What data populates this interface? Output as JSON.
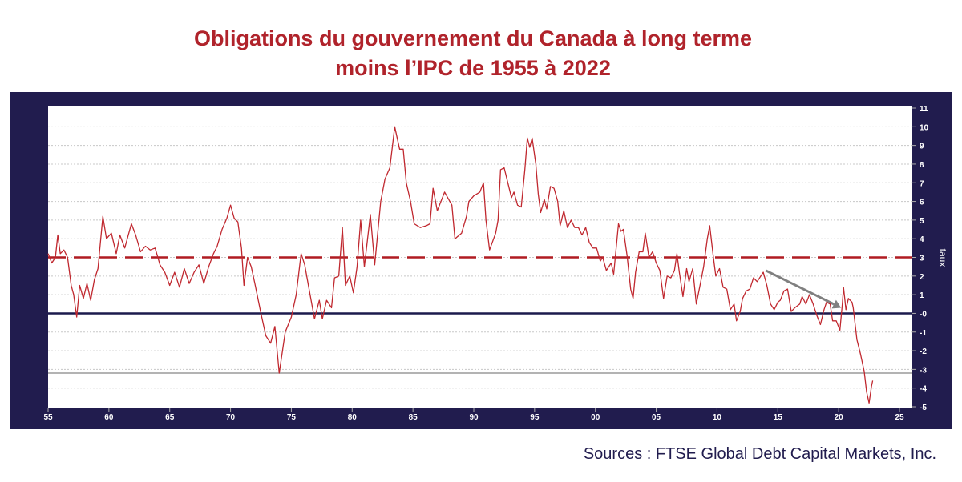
{
  "chart_data": {
    "type": "line",
    "title_line1": "Obligations du gouvernement du Canada à long terme",
    "title_line2": "moins l’IPC de 1955 à 2022",
    "ylabel": "taux",
    "xlabel": "",
    "xlim": [
      1955,
      2025
    ],
    "ylim": [
      -5,
      11
    ],
    "grid": true,
    "x_ticks": [
      {
        "value": 1955,
        "label": "55"
      },
      {
        "value": 1960,
        "label": "60"
      },
      {
        "value": 1965,
        "label": "65"
      },
      {
        "value": 1970,
        "label": "70"
      },
      {
        "value": 1975,
        "label": "75"
      },
      {
        "value": 1980,
        "label": "80"
      },
      {
        "value": 1985,
        "label": "85"
      },
      {
        "value": 1990,
        "label": "90"
      },
      {
        "value": 1995,
        "label": "95"
      },
      {
        "value": 2000,
        "label": "00"
      },
      {
        "value": 2005,
        "label": "05"
      },
      {
        "value": 2010,
        "label": "10"
      },
      {
        "value": 2015,
        "label": "15"
      },
      {
        "value": 2020,
        "label": "20"
      },
      {
        "value": 2025,
        "label": "25"
      }
    ],
    "y_ticks": [
      {
        "value": 11,
        "label": "11"
      },
      {
        "value": 10,
        "label": "10"
      },
      {
        "value": 9,
        "label": "9"
      },
      {
        "value": 8,
        "label": "8"
      },
      {
        "value": 7,
        "label": "7"
      },
      {
        "value": 6,
        "label": "6"
      },
      {
        "value": 5,
        "label": "5"
      },
      {
        "value": 4,
        "label": "4"
      },
      {
        "value": 3,
        "label": "3"
      },
      {
        "value": 2,
        "label": "2"
      },
      {
        "value": 1,
        "label": "1"
      },
      {
        "value": 0,
        "label": "-0"
      },
      {
        "value": -1,
        "label": "-1"
      },
      {
        "value": -2,
        "label": "-2"
      },
      {
        "value": -3,
        "label": "-3"
      },
      {
        "value": -4,
        "label": "-4"
      },
      {
        "value": -5,
        "label": "-5"
      }
    ],
    "reference_lines": [
      {
        "name": "average",
        "value": 3.0,
        "style": "dashed",
        "color": "#b01c22"
      },
      {
        "name": "zero",
        "value": 0,
        "style": "solid",
        "color": "#1c1a4d"
      },
      {
        "name": "previous-low",
        "value": -3.2,
        "style": "solid",
        "color": "#9a9a9a"
      }
    ],
    "arrow": {
      "from": [
        2014.0,
        2.3
      ],
      "to": [
        2020.2,
        0.3
      ],
      "color": "#808080"
    },
    "series": [
      {
        "name": "Obligations LT moins IPC",
        "color": "#c0282f",
        "points": [
          [
            1955.0,
            3.2
          ],
          [
            1955.3,
            2.7
          ],
          [
            1955.6,
            3.0
          ],
          [
            1955.8,
            4.2
          ],
          [
            1956.0,
            3.2
          ],
          [
            1956.3,
            3.4
          ],
          [
            1956.6,
            3.0
          ],
          [
            1956.9,
            1.5
          ],
          [
            1957.1,
            1.0
          ],
          [
            1957.35,
            -0.2
          ],
          [
            1957.6,
            1.5
          ],
          [
            1957.9,
            0.8
          ],
          [
            1958.2,
            1.6
          ],
          [
            1958.5,
            0.7
          ],
          [
            1958.8,
            1.8
          ],
          [
            1959.1,
            2.4
          ],
          [
            1959.5,
            5.2
          ],
          [
            1959.8,
            4.0
          ],
          [
            1960.2,
            4.3
          ],
          [
            1960.6,
            3.2
          ],
          [
            1960.9,
            4.2
          ],
          [
            1961.3,
            3.5
          ],
          [
            1961.85,
            4.8
          ],
          [
            1962.2,
            4.2
          ],
          [
            1962.6,
            3.3
          ],
          [
            1963.0,
            3.6
          ],
          [
            1963.4,
            3.4
          ],
          [
            1963.8,
            3.5
          ],
          [
            1964.2,
            2.6
          ],
          [
            1964.6,
            2.2
          ],
          [
            1965.0,
            1.5
          ],
          [
            1965.4,
            2.2
          ],
          [
            1965.8,
            1.4
          ],
          [
            1966.2,
            2.4
          ],
          [
            1966.6,
            1.6
          ],
          [
            1967.0,
            2.2
          ],
          [
            1967.4,
            2.6
          ],
          [
            1967.8,
            1.6
          ],
          [
            1968.2,
            2.5
          ],
          [
            1968.6,
            3.2
          ],
          [
            1968.9,
            3.6
          ],
          [
            1969.3,
            4.5
          ],
          [
            1969.7,
            5.1
          ],
          [
            1970.0,
            5.8
          ],
          [
            1970.3,
            5.1
          ],
          [
            1970.6,
            4.9
          ],
          [
            1970.9,
            3.5
          ],
          [
            1971.1,
            1.5
          ],
          [
            1971.4,
            3.0
          ],
          [
            1971.7,
            2.5
          ],
          [
            1972.0,
            1.6
          ],
          [
            1972.5,
            0.0
          ],
          [
            1972.9,
            -1.2
          ],
          [
            1973.3,
            -1.6
          ],
          [
            1973.65,
            -0.7
          ],
          [
            1974.0,
            -3.2
          ],
          [
            1974.5,
            -1.0
          ],
          [
            1975.0,
            -0.2
          ],
          [
            1975.4,
            1.0
          ],
          [
            1975.8,
            3.2
          ],
          [
            1976.1,
            2.6
          ],
          [
            1976.4,
            1.5
          ],
          [
            1976.9,
            -0.3
          ],
          [
            1977.3,
            0.7
          ],
          [
            1977.55,
            -0.3
          ],
          [
            1977.9,
            0.7
          ],
          [
            1978.3,
            0.3
          ],
          [
            1978.55,
            1.9
          ],
          [
            1978.9,
            2.0
          ],
          [
            1979.2,
            4.6
          ],
          [
            1979.45,
            1.5
          ],
          [
            1979.8,
            2.0
          ],
          [
            1980.1,
            1.1
          ],
          [
            1980.4,
            2.5
          ],
          [
            1980.7,
            5.0
          ],
          [
            1981.0,
            2.5
          ],
          [
            1981.5,
            5.3
          ],
          [
            1981.85,
            2.6
          ],
          [
            1982.35,
            6.0
          ],
          [
            1982.7,
            7.2
          ],
          [
            1983.1,
            7.8
          ],
          [
            1983.5,
            10.0
          ],
          [
            1983.9,
            8.8
          ],
          [
            1984.2,
            8.8
          ],
          [
            1984.45,
            7.0
          ],
          [
            1984.8,
            6.0
          ],
          [
            1985.1,
            4.8
          ],
          [
            1985.6,
            4.6
          ],
          [
            1986.1,
            4.7
          ],
          [
            1986.4,
            4.8
          ],
          [
            1986.65,
            6.7
          ],
          [
            1987.0,
            5.5
          ],
          [
            1987.6,
            6.5
          ],
          [
            1988.2,
            5.8
          ],
          [
            1988.45,
            4.0
          ],
          [
            1989.0,
            4.3
          ],
          [
            1989.4,
            5.2
          ],
          [
            1989.6,
            6.0
          ],
          [
            1990.0,
            6.3
          ],
          [
            1990.5,
            6.5
          ],
          [
            1990.8,
            7.0
          ],
          [
            1991.0,
            5.0
          ],
          [
            1991.3,
            3.4
          ],
          [
            1991.8,
            4.3
          ],
          [
            1992.0,
            5.0
          ],
          [
            1992.2,
            7.7
          ],
          [
            1992.5,
            7.8
          ],
          [
            1992.8,
            7.0
          ],
          [
            1993.1,
            6.2
          ],
          [
            1993.3,
            6.5
          ],
          [
            1993.6,
            5.8
          ],
          [
            1993.9,
            5.7
          ],
          [
            1994.2,
            7.7
          ],
          [
            1994.4,
            9.4
          ],
          [
            1994.6,
            8.9
          ],
          [
            1994.8,
            9.4
          ],
          [
            1995.1,
            8.0
          ],
          [
            1995.3,
            6.4
          ],
          [
            1995.5,
            5.4
          ],
          [
            1995.8,
            6.1
          ],
          [
            1996.0,
            5.6
          ],
          [
            1996.3,
            6.8
          ],
          [
            1996.6,
            6.7
          ],
          [
            1996.9,
            6.0
          ],
          [
            1997.1,
            4.7
          ],
          [
            1997.4,
            5.5
          ],
          [
            1997.7,
            4.6
          ],
          [
            1998.0,
            5.0
          ],
          [
            1998.3,
            4.6
          ],
          [
            1998.6,
            4.6
          ],
          [
            1998.9,
            4.2
          ],
          [
            1999.2,
            4.6
          ],
          [
            1999.5,
            3.8
          ],
          [
            1999.8,
            3.5
          ],
          [
            2000.1,
            3.5
          ],
          [
            2000.4,
            2.8
          ],
          [
            2000.6,
            3.0
          ],
          [
            2000.9,
            2.3
          ],
          [
            2001.3,
            2.7
          ],
          [
            2001.5,
            2.1
          ],
          [
            2001.9,
            4.8
          ],
          [
            2002.1,
            4.4
          ],
          [
            2002.3,
            4.5
          ],
          [
            2002.6,
            3.1
          ],
          [
            2002.9,
            1.3
          ],
          [
            2003.1,
            0.8
          ],
          [
            2003.3,
            2.2
          ],
          [
            2003.6,
            3.3
          ],
          [
            2003.9,
            3.3
          ],
          [
            2004.1,
            4.3
          ],
          [
            2004.4,
            3.0
          ],
          [
            2004.7,
            3.3
          ],
          [
            2005.0,
            2.7
          ],
          [
            2005.3,
            2.3
          ],
          [
            2005.6,
            0.8
          ],
          [
            2005.9,
            2.0
          ],
          [
            2006.2,
            1.9
          ],
          [
            2006.5,
            2.3
          ],
          [
            2006.7,
            3.2
          ],
          [
            2006.9,
            2.2
          ],
          [
            2007.2,
            0.9
          ],
          [
            2007.5,
            2.4
          ],
          [
            2007.7,
            1.7
          ],
          [
            2008.0,
            2.4
          ],
          [
            2008.3,
            0.5
          ],
          [
            2008.6,
            1.5
          ],
          [
            2008.9,
            2.5
          ],
          [
            2009.2,
            4.0
          ],
          [
            2009.4,
            4.7
          ],
          [
            2009.7,
            3.0
          ],
          [
            2009.9,
            2.0
          ],
          [
            2010.2,
            2.4
          ],
          [
            2010.5,
            1.4
          ],
          [
            2010.8,
            1.3
          ],
          [
            2011.1,
            0.2
          ],
          [
            2011.4,
            0.5
          ],
          [
            2011.6,
            -0.4
          ],
          [
            2011.9,
            0.1
          ],
          [
            2012.1,
            0.8
          ],
          [
            2012.4,
            1.2
          ],
          [
            2012.7,
            1.3
          ],
          [
            2013.0,
            1.9
          ],
          [
            2013.3,
            1.7
          ],
          [
            2013.6,
            2.0
          ],
          [
            2013.8,
            2.2
          ],
          [
            2014.1,
            1.5
          ],
          [
            2014.4,
            0.5
          ],
          [
            2014.7,
            0.2
          ],
          [
            2015.0,
            0.6
          ],
          [
            2015.2,
            0.7
          ],
          [
            2015.5,
            1.2
          ],
          [
            2015.8,
            1.3
          ],
          [
            2016.1,
            0.1
          ],
          [
            2016.4,
            0.3
          ],
          [
            2016.8,
            0.5
          ],
          [
            2017.0,
            0.9
          ],
          [
            2017.3,
            0.5
          ],
          [
            2017.6,
            1.0
          ],
          [
            2017.9,
            0.5
          ],
          [
            2018.2,
            -0.1
          ],
          [
            2018.5,
            -0.6
          ],
          [
            2018.8,
            0.2
          ],
          [
            2019.0,
            0.6
          ],
          [
            2019.3,
            0.5
          ],
          [
            2019.5,
            -0.4
          ],
          [
            2019.8,
            -0.4
          ],
          [
            2020.1,
            -0.9
          ],
          [
            2020.3,
            0.5
          ],
          [
            2020.4,
            1.4
          ],
          [
            2020.6,
            0.2
          ],
          [
            2020.8,
            0.8
          ],
          [
            2021.1,
            0.6
          ],
          [
            2021.2,
            0.3
          ],
          [
            2021.5,
            -1.4
          ],
          [
            2021.8,
            -2.2
          ],
          [
            2022.1,
            -3.1
          ],
          [
            2022.3,
            -4.2
          ],
          [
            2022.5,
            -4.8
          ],
          [
            2022.7,
            -3.9
          ],
          [
            2022.8,
            -3.6
          ]
        ]
      }
    ]
  },
  "source": "Sources : FTSE Global Debt Capital Markets, Inc."
}
